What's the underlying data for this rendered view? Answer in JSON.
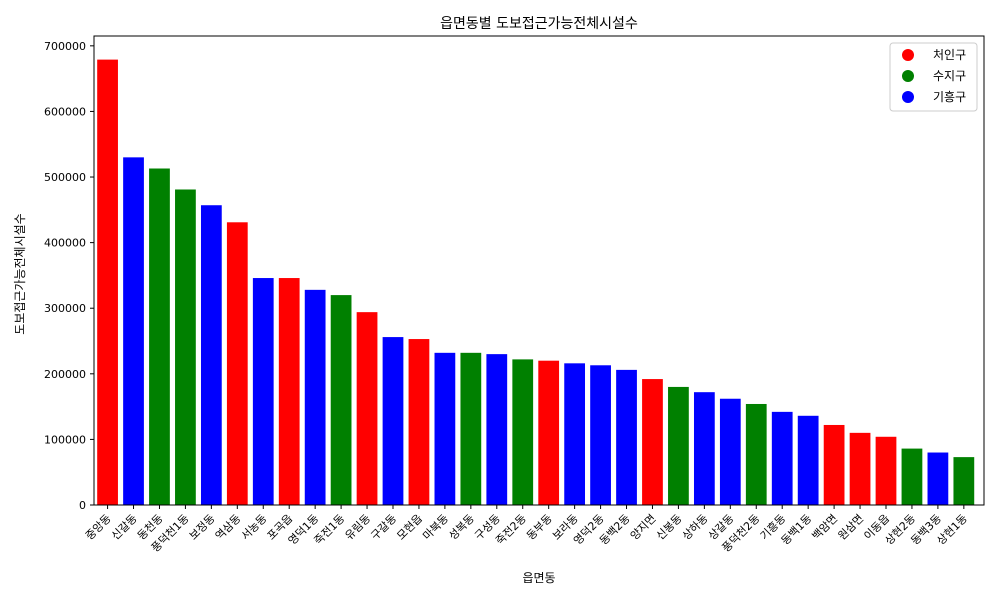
{
  "chart_data": {
    "type": "bar",
    "title": "읍면동별 도보접근가능전체시설수",
    "xlabel": "읍면동",
    "ylabel": "도보접근가능전체시설수",
    "ylim": [
      0,
      715000
    ],
    "yticks": [
      0,
      100000,
      200000,
      300000,
      400000,
      500000,
      600000,
      700000
    ],
    "ytick_labels": [
      "0",
      "100000",
      "200000",
      "300000",
      "400000",
      "500000",
      "600000",
      "700000"
    ],
    "grid": false,
    "legend_position": "top-right",
    "legend": [
      {
        "name": "처인구",
        "color": "#ff0000"
      },
      {
        "name": "수지구",
        "color": "#008000"
      },
      {
        "name": "기흥구",
        "color": "#0000ff"
      }
    ],
    "categories": [
      "중앙동",
      "신갈동",
      "동천동",
      "풍덕천1동",
      "보정동",
      "역삼동",
      "서농동",
      "포곡읍",
      "영덕1동",
      "죽전1동",
      "유림동",
      "구갈동",
      "모현읍",
      "마북동",
      "성복동",
      "구성동",
      "죽전2동",
      "동부동",
      "보라동",
      "영덕2동",
      "동백2동",
      "양지면",
      "신봉동",
      "상하동",
      "상갈동",
      "풍덕천2동",
      "기흥동",
      "동백1동",
      "백암면",
      "원삼면",
      "이동읍",
      "상현2동",
      "동백3동",
      "상현1동"
    ],
    "values": [
      679000,
      530000,
      513000,
      481000,
      457000,
      431000,
      346000,
      346000,
      328000,
      320000,
      294000,
      256000,
      253000,
      232000,
      232000,
      230000,
      222000,
      220000,
      216000,
      213000,
      206000,
      192000,
      180000,
      172000,
      162000,
      154000,
      142000,
      136000,
      122000,
      110000,
      104000,
      86000,
      80000,
      73000
    ],
    "districts": [
      "처인구",
      "기흥구",
      "수지구",
      "수지구",
      "기흥구",
      "처인구",
      "기흥구",
      "처인구",
      "기흥구",
      "수지구",
      "처인구",
      "기흥구",
      "처인구",
      "기흥구",
      "수지구",
      "기흥구",
      "수지구",
      "처인구",
      "기흥구",
      "기흥구",
      "기흥구",
      "처인구",
      "수지구",
      "기흥구",
      "기흥구",
      "수지구",
      "기흥구",
      "기흥구",
      "처인구",
      "처인구",
      "처인구",
      "수지구",
      "기흥구",
      "수지구"
    ]
  }
}
